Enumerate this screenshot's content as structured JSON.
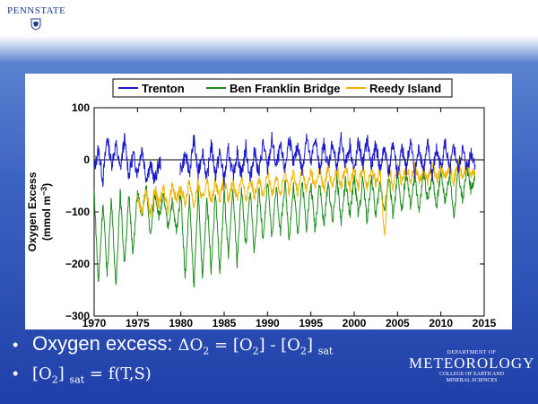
{
  "header": {
    "institution": "PENNSTATE"
  },
  "chart_data": {
    "type": "line",
    "xlim": [
      1970,
      2015
    ],
    "ylim": [
      -300,
      100
    ],
    "xticks": [
      1970,
      1975,
      1980,
      1985,
      1990,
      1995,
      2000,
      2005,
      2010,
      2015
    ],
    "yticks": [
      100,
      0,
      -100,
      -200,
      -300
    ],
    "ylabel_line1": "Oxygen Excess",
    "ylabel_line2": "(mmol m",
    "ylabel_sup": "−3",
    "ylabel_close": ")",
    "legend": {
      "placement": "top"
    },
    "series": [
      {
        "name": "Trenton",
        "color": "#1a1acc",
        "start": 1970,
        "end": 2014,
        "points": [
          [
            1970,
            -20
          ],
          [
            1970.5,
            20
          ],
          [
            1971,
            -40
          ],
          [
            1971.5,
            45
          ],
          [
            1972,
            -10
          ],
          [
            1972.5,
            30
          ],
          [
            1973,
            -20
          ],
          [
            1973.5,
            40
          ],
          [
            1974,
            -30
          ],
          [
            1974.5,
            10
          ],
          [
            1975,
            -25
          ],
          [
            1975.5,
            25
          ],
          [
            1976,
            -35
          ],
          [
            1976.5,
            -10
          ],
          [
            1977,
            -40
          ],
          [
            1977.5,
            -5
          ],
          [
            1980,
            -20
          ],
          [
            1980.5,
            10
          ],
          [
            1981,
            -25
          ],
          [
            1981.5,
            40
          ],
          [
            1982,
            -30
          ],
          [
            1982.5,
            20
          ],
          [
            1983,
            -40
          ],
          [
            1983.5,
            30
          ],
          [
            1984,
            -30
          ],
          [
            1984.5,
            15
          ],
          [
            1985,
            -40
          ],
          [
            1985.5,
            20
          ],
          [
            1986,
            -35
          ],
          [
            1986.5,
            15
          ],
          [
            1987,
            -30
          ],
          [
            1987.5,
            25
          ],
          [
            1988,
            -40
          ],
          [
            1988.5,
            20
          ],
          [
            1989,
            -30
          ],
          [
            1989.5,
            35
          ],
          [
            1990,
            -20
          ],
          [
            1990.5,
            40
          ],
          [
            1991,
            -15
          ],
          [
            1991.5,
            25
          ],
          [
            1992,
            -20
          ],
          [
            1992.5,
            45
          ],
          [
            1993,
            -10
          ],
          [
            1993.5,
            30
          ],
          [
            1994,
            -25
          ],
          [
            1994.5,
            50
          ],
          [
            1995,
            -10
          ],
          [
            1995.5,
            45
          ],
          [
            1996,
            -20
          ],
          [
            1996.5,
            30
          ],
          [
            1997,
            -15
          ],
          [
            1997.5,
            35
          ],
          [
            1998,
            -20
          ],
          [
            1998.5,
            40
          ],
          [
            1999,
            -10
          ],
          [
            1999.5,
            30
          ],
          [
            2000,
            -25
          ],
          [
            2000.5,
            35
          ],
          [
            2001,
            -10
          ],
          [
            2001.5,
            40
          ],
          [
            2002,
            -15
          ],
          [
            2002.5,
            30
          ],
          [
            2003,
            -20
          ],
          [
            2003.5,
            25
          ],
          [
            2004,
            -25
          ],
          [
            2004.5,
            35
          ],
          [
            2005,
            -30
          ],
          [
            2005.5,
            20
          ],
          [
            2006,
            -15
          ],
          [
            2006.5,
            35
          ],
          [
            2007,
            -25
          ],
          [
            2007.5,
            25
          ],
          [
            2008,
            -20
          ],
          [
            2008.5,
            30
          ],
          [
            2009,
            -30
          ],
          [
            2009.5,
            20
          ],
          [
            2010,
            -15
          ],
          [
            2010.5,
            35
          ],
          [
            2011,
            -25
          ],
          [
            2011.5,
            25
          ],
          [
            2012,
            -20
          ],
          [
            2012.5,
            20
          ],
          [
            2013,
            -15
          ],
          [
            2013.5,
            15
          ],
          [
            2014,
            -10
          ]
        ]
      },
      {
        "name": "Ben Franklin Bridge",
        "color": "#1f8c1f",
        "start": 1970,
        "end": 2014,
        "points": [
          [
            1970,
            -60
          ],
          [
            1970.5,
            -240
          ],
          [
            1971,
            -80
          ],
          [
            1971.5,
            -220
          ],
          [
            1972,
            -70
          ],
          [
            1972.5,
            -250
          ],
          [
            1973,
            -60
          ],
          [
            1973.5,
            -200
          ],
          [
            1974,
            -70
          ],
          [
            1974.5,
            -180
          ],
          [
            1975,
            -60
          ],
          [
            1975.5,
            -110
          ],
          [
            1976,
            -50
          ],
          [
            1976.5,
            -150
          ],
          [
            1977,
            -60
          ],
          [
            1977.5,
            -110
          ],
          [
            1978,
            -70
          ],
          [
            1978.5,
            -130
          ],
          [
            1979,
            -80
          ],
          [
            1979.5,
            -140
          ],
          [
            1980,
            -60
          ],
          [
            1980.5,
            -230
          ],
          [
            1981,
            -70
          ],
          [
            1981.5,
            -250
          ],
          [
            1982,
            -60
          ],
          [
            1982.5,
            -230
          ],
          [
            1983,
            -70
          ],
          [
            1983.5,
            -210
          ],
          [
            1984,
            -60
          ],
          [
            1984.5,
            -220
          ],
          [
            1985,
            -60
          ],
          [
            1985.5,
            -190
          ],
          [
            1986,
            -55
          ],
          [
            1986.5,
            -200
          ],
          [
            1987,
            -50
          ],
          [
            1987.5,
            -170
          ],
          [
            1988,
            -55
          ],
          [
            1988.5,
            -180
          ],
          [
            1989,
            -50
          ],
          [
            1989.5,
            -160
          ],
          [
            1990,
            -40
          ],
          [
            1990.5,
            -150
          ],
          [
            1991,
            -50
          ],
          [
            1991.5,
            -140
          ],
          [
            1992,
            -40
          ],
          [
            1992.5,
            -150
          ],
          [
            1993,
            -50
          ],
          [
            1993.5,
            -140
          ],
          [
            1994,
            -40
          ],
          [
            1994.5,
            -130
          ],
          [
            1995,
            -45
          ],
          [
            1995.5,
            -135
          ],
          [
            1996,
            -40
          ],
          [
            1996.5,
            -130
          ],
          [
            1997,
            -40
          ],
          [
            1997.5,
            -120
          ],
          [
            1998,
            -35
          ],
          [
            1998.5,
            -120
          ],
          [
            1999,
            -40
          ],
          [
            1999.5,
            -110
          ],
          [
            2000,
            -30
          ],
          [
            2000.5,
            -110
          ],
          [
            2001,
            -35
          ],
          [
            2001.5,
            -120
          ],
          [
            2002,
            -30
          ],
          [
            2002.5,
            -110
          ],
          [
            2003,
            -40
          ],
          [
            2003.5,
            -100
          ],
          [
            2004,
            -30
          ],
          [
            2004.5,
            -110
          ],
          [
            2005,
            -30
          ],
          [
            2005.5,
            -100
          ],
          [
            2006,
            -25
          ],
          [
            2006.5,
            -90
          ],
          [
            2007,
            -30
          ],
          [
            2007.5,
            -100
          ],
          [
            2008,
            -25
          ],
          [
            2008.5,
            -80
          ],
          [
            2009,
            -25
          ],
          [
            2009.5,
            -90
          ],
          [
            2010,
            -20
          ],
          [
            2010.5,
            -80
          ],
          [
            2011,
            -25
          ],
          [
            2011.5,
            -110
          ],
          [
            2012,
            -20
          ],
          [
            2012.5,
            -80
          ],
          [
            2013,
            -15
          ],
          [
            2013.5,
            -60
          ],
          [
            2014,
            -20
          ]
        ]
      },
      {
        "name": "Reedy Island",
        "color": "#f0b400",
        "start": 1975,
        "end": 2014,
        "points": [
          [
            1975,
            -70
          ],
          [
            1975.5,
            -100
          ],
          [
            1976,
            -60
          ],
          [
            1976.5,
            -105
          ],
          [
            1977,
            -55
          ],
          [
            1977.5,
            -90
          ],
          [
            1978,
            -50
          ],
          [
            1978.5,
            -95
          ],
          [
            1979,
            -45
          ],
          [
            1979.5,
            -80
          ],
          [
            1980,
            -50
          ],
          [
            1980.5,
            -85
          ],
          [
            1981,
            -40
          ],
          [
            1981.5,
            -90
          ],
          [
            1982,
            -45
          ],
          [
            1982.5,
            -80
          ],
          [
            1983,
            -35
          ],
          [
            1983.5,
            -85
          ],
          [
            1984,
            -40
          ],
          [
            1984.5,
            -75
          ],
          [
            1985,
            -35
          ],
          [
            1985.5,
            -80
          ],
          [
            1986,
            -40
          ],
          [
            1986.5,
            -75
          ],
          [
            1987,
            -30
          ],
          [
            1987.5,
            -80
          ],
          [
            1988,
            -35
          ],
          [
            1988.5,
            -70
          ],
          [
            1989,
            -30
          ],
          [
            1989.5,
            -75
          ],
          [
            1990,
            -25
          ],
          [
            1990.5,
            -65
          ],
          [
            1991,
            -30
          ],
          [
            1991.5,
            -70
          ],
          [
            1992,
            -20
          ],
          [
            1992.5,
            -60
          ],
          [
            1993,
            -25
          ],
          [
            1993.5,
            -65
          ],
          [
            1994,
            -15
          ],
          [
            1994.5,
            -60
          ],
          [
            1995,
            -20
          ],
          [
            1995.5,
            -55
          ],
          [
            1996,
            -15
          ],
          [
            1996.5,
            -60
          ],
          [
            1997,
            -10
          ],
          [
            1997.5,
            -55
          ],
          [
            1998,
            -15
          ],
          [
            1998.5,
            -50
          ],
          [
            1999,
            -10
          ],
          [
            1999.5,
            -55
          ],
          [
            2000,
            -15
          ],
          [
            2000.5,
            -50
          ],
          [
            2001,
            -10
          ],
          [
            2001.5,
            -55
          ],
          [
            2002,
            -15
          ],
          [
            2002.5,
            -45
          ],
          [
            2003,
            -20
          ],
          [
            2003.5,
            -150
          ],
          [
            2004,
            -15
          ],
          [
            2004.5,
            -50
          ],
          [
            2005,
            -10
          ],
          [
            2005.5,
            -45
          ],
          [
            2006,
            -15
          ],
          [
            2006.5,
            -40
          ],
          [
            2007,
            -10
          ],
          [
            2007.5,
            -45
          ],
          [
            2008,
            -15
          ],
          [
            2008.5,
            -40
          ],
          [
            2009,
            -10
          ],
          [
            2009.5,
            -40
          ],
          [
            2010,
            -15
          ],
          [
            2010.5,
            -35
          ],
          [
            2011,
            -10
          ],
          [
            2011.5,
            -40
          ],
          [
            2012,
            -5
          ],
          [
            2012.5,
            -35
          ],
          [
            2013,
            -10
          ],
          [
            2013.5,
            -30
          ],
          [
            2014,
            -20
          ]
        ]
      }
    ]
  },
  "bullets": [
    {
      "text": "Oxygen excess",
      "sep": ":",
      "eq": "ΔO",
      "eq_sub": "2",
      "eq_mid": " = [O",
      "eq_sub2": "2",
      "eq_mid2": "] - [O",
      "eq_sub3": "2",
      "eq_end": "]",
      "eq_sat": "sat"
    },
    {
      "eq": "[O",
      "eq_sub": "2",
      "eq_mid": "]",
      "eq_sat": "sat",
      "eq_end": " = f(T,S)"
    }
  ],
  "dept": {
    "top": "DEPARTMENT OF",
    "main": "METEOROLOGY",
    "sub1": "COLLEGE OF EARTH AND",
    "sub2": "MINERAL SCIENCES"
  },
  "colors": {
    "background_blue": "#2e52b8",
    "text_white": "#ffffff"
  }
}
